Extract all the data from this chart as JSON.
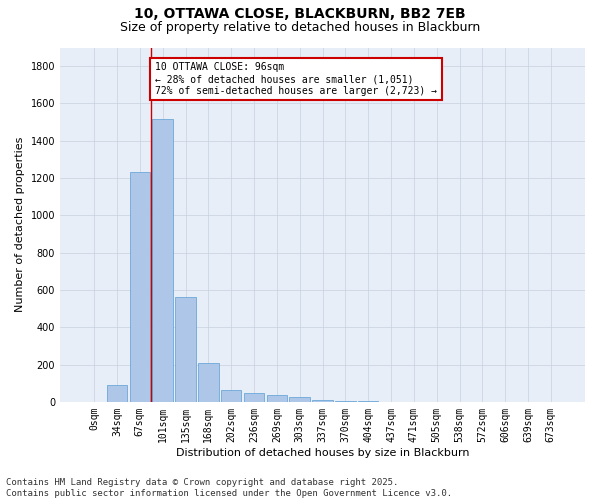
{
  "title_line1": "10, OTTAWA CLOSE, BLACKBURN, BB2 7EB",
  "title_line2": "Size of property relative to detached houses in Blackburn",
  "xlabel": "Distribution of detached houses by size in Blackburn",
  "ylabel": "Number of detached properties",
  "categories": [
    "0sqm",
    "34sqm",
    "67sqm",
    "101sqm",
    "135sqm",
    "168sqm",
    "202sqm",
    "236sqm",
    "269sqm",
    "303sqm",
    "337sqm",
    "370sqm",
    "404sqm",
    "437sqm",
    "471sqm",
    "505sqm",
    "538sqm",
    "572sqm",
    "606sqm",
    "639sqm",
    "673sqm"
  ],
  "values": [
    0,
    90,
    1235,
    1515,
    560,
    210,
    65,
    45,
    35,
    28,
    10,
    5,
    2,
    0,
    0,
    0,
    0,
    0,
    0,
    0,
    0
  ],
  "bar_color": "#aec6e8",
  "bar_edge_color": "#5a9fd4",
  "vline_x_index": 3,
  "vline_color": "#cc0000",
  "annotation_text": "10 OTTAWA CLOSE: 96sqm\n← 28% of detached houses are smaller (1,051)\n72% of semi-detached houses are larger (2,723) →",
  "annotation_box_edgecolor": "#cc0000",
  "annotation_box_facecolor": "white",
  "ylim": [
    0,
    1900
  ],
  "yticks": [
    0,
    200,
    400,
    600,
    800,
    1000,
    1200,
    1400,
    1600,
    1800
  ],
  "grid_color": "#c8d0e0",
  "bg_color": "#e8eef8",
  "footnote": "Contains HM Land Registry data © Crown copyright and database right 2025.\nContains public sector information licensed under the Open Government Licence v3.0.",
  "title_fontsize": 10,
  "subtitle_fontsize": 9,
  "axis_label_fontsize": 8,
  "tick_fontsize": 7,
  "annotation_fontsize": 7,
  "footnote_fontsize": 6.5
}
